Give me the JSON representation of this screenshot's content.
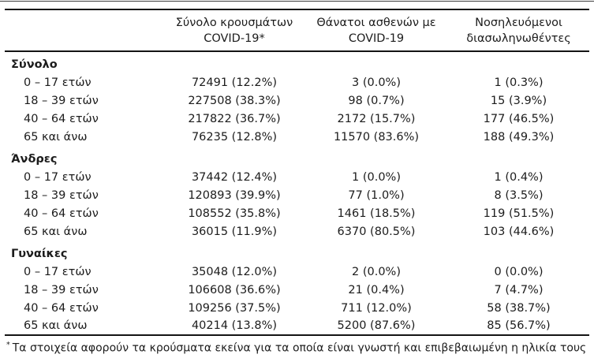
{
  "colors": {
    "background": "#ffffff",
    "text": "#1c1c1c",
    "rule": "#141414"
  },
  "table": {
    "header": {
      "cases": {
        "line1": "Σύνολο κρουσμάτων",
        "line2": "COVID-19*"
      },
      "deaths": {
        "line1": "Θάνατοι ασθενών με",
        "line2": "COVID-19"
      },
      "intubated": {
        "line1": "Νοσηλευόμενοι",
        "line2": "διασωληνωθέντες"
      }
    },
    "groups": [
      {
        "label": "Σύνολο",
        "rows": [
          {
            "label": "0 – 17 ετών",
            "cases": "72491 (12.2%)",
            "deaths": "3 (0.0%)",
            "intubated": "1 (0.3%)"
          },
          {
            "label": "18 – 39 ετών",
            "cases": "227508 (38.3%)",
            "deaths": "98 (0.7%)",
            "intubated": "15 (3.9%)"
          },
          {
            "label": "40 – 64 ετών",
            "cases": "217822 (36.7%)",
            "deaths": "2172 (15.7%)",
            "intubated": "177 (46.5%)"
          },
          {
            "label": "65 και άνω",
            "cases": "76235 (12.8%)",
            "deaths": "11570 (83.6%)",
            "intubated": "188 (49.3%)"
          }
        ]
      },
      {
        "label": "Άνδρες",
        "rows": [
          {
            "label": "0 – 17 ετών",
            "cases": "37442 (12.4%)",
            "deaths": "1 (0.0%)",
            "intubated": "1 (0.4%)"
          },
          {
            "label": "18 – 39 ετών",
            "cases": "120893 (39.9%)",
            "deaths": "77 (1.0%)",
            "intubated": "8 (3.5%)"
          },
          {
            "label": "40 – 64 ετών",
            "cases": "108552 (35.8%)",
            "deaths": "1461 (18.5%)",
            "intubated": "119 (51.5%)"
          },
          {
            "label": "65 και άνω",
            "cases": "36015 (11.9%)",
            "deaths": "6370 (80.5%)",
            "intubated": "103 (44.6%)"
          }
        ]
      },
      {
        "label": "Γυναίκες",
        "rows": [
          {
            "label": "0 – 17 ετών",
            "cases": "35048 (12.0%)",
            "deaths": "2 (0.0%)",
            "intubated": "0 (0.0%)"
          },
          {
            "label": "18 – 39 ετών",
            "cases": "106608 (36.6%)",
            "deaths": "21 (0.4%)",
            "intubated": "7 (4.7%)"
          },
          {
            "label": "40 – 64 ετών",
            "cases": "109256 (37.5%)",
            "deaths": "711 (12.0%)",
            "intubated": "58 (38.7%)"
          },
          {
            "label": "65 και άνω",
            "cases": "40214 (13.8%)",
            "deaths": "5200 (87.6%)",
            "intubated": "85 (56.7%)"
          }
        ]
      }
    ],
    "footnote": {
      "marker": "*",
      "text": "Τα στοιχεία αφορούν τα κρούσματα εκείνα για τα οποία είναι γνωστή και επιβεβαιωμένη η ηλικία τους"
    }
  }
}
